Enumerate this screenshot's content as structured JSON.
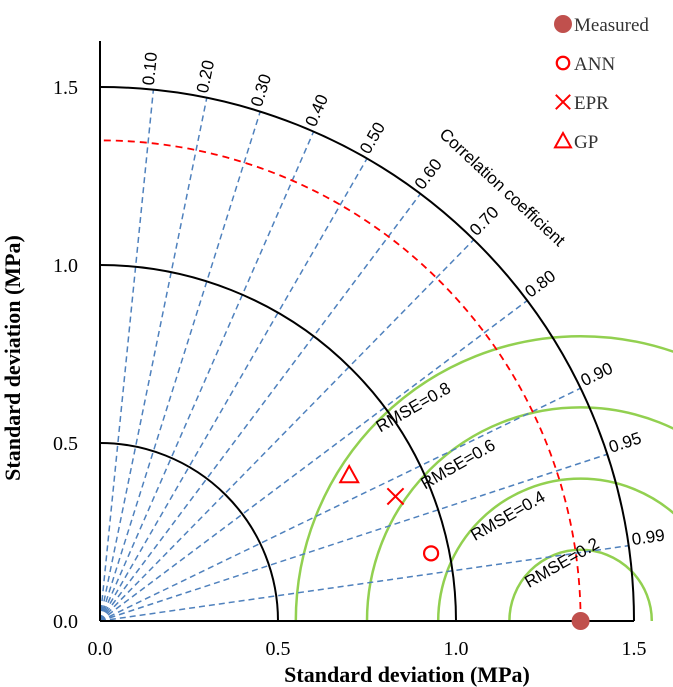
{
  "chart_data": {
    "type": "scatter",
    "subtype": "taylor-diagram",
    "xlabel": "Standard deviation (MPa)",
    "ylabel": "Standard deviation (MPa)",
    "xlim": [
      0,
      1.5
    ],
    "ylim": [
      0,
      1.5
    ],
    "x_ticks": [
      "0.0",
      "0.5",
      "1.0",
      "1.5"
    ],
    "y_ticks": [
      "0.0",
      "0.5",
      "1.0",
      "1.5"
    ],
    "std_arcs": [
      0.5,
      1.0,
      1.5
    ],
    "arc_label": "Correlation coefficient",
    "correlation_ticks": [
      {
        "r": 0.1,
        "label": "0.10"
      },
      {
        "r": 0.2,
        "label": "0.20"
      },
      {
        "r": 0.3,
        "label": "0.30"
      },
      {
        "r": 0.4,
        "label": "0.40"
      },
      {
        "r": 0.5,
        "label": "0.50"
      },
      {
        "r": 0.6,
        "label": "0.60"
      },
      {
        "r": 0.7,
        "label": "0.70"
      },
      {
        "r": 0.8,
        "label": "0.80"
      },
      {
        "r": 0.9,
        "label": "0.90"
      },
      {
        "r": 0.95,
        "label": "0.95"
      },
      {
        "r": 0.99,
        "label": "0.99"
      }
    ],
    "rmse_contours": [
      {
        "value": 0.2,
        "label": "RMSE=0.2"
      },
      {
        "value": 0.4,
        "label": "RMSE=0.4"
      },
      {
        "value": 0.6,
        "label": "RMSE=0.6"
      },
      {
        "value": 0.8,
        "label": "RMSE=0.8"
      }
    ],
    "reference_std": 1.35,
    "series": [
      {
        "name": "Measured",
        "marker": "filled-circle",
        "color": "#c0504d",
        "x": 1.35,
        "y": 0.0
      },
      {
        "name": "ANN",
        "marker": "open-circle",
        "color": "#ff0000",
        "x": 0.93,
        "y": 0.19
      },
      {
        "name": "EPR",
        "marker": "cross",
        "color": "#ff0000",
        "x": 0.83,
        "y": 0.35
      },
      {
        "name": "GP",
        "marker": "open-triangle",
        "color": "#ff0000",
        "x": 0.7,
        "y": 0.41
      }
    ],
    "legend_position": "top-right",
    "colors": {
      "std_arc": "#000000",
      "correlation_line": "#4f81bd",
      "reference_arc": "#ff0000",
      "rmse_contour": "#92d050"
    }
  }
}
